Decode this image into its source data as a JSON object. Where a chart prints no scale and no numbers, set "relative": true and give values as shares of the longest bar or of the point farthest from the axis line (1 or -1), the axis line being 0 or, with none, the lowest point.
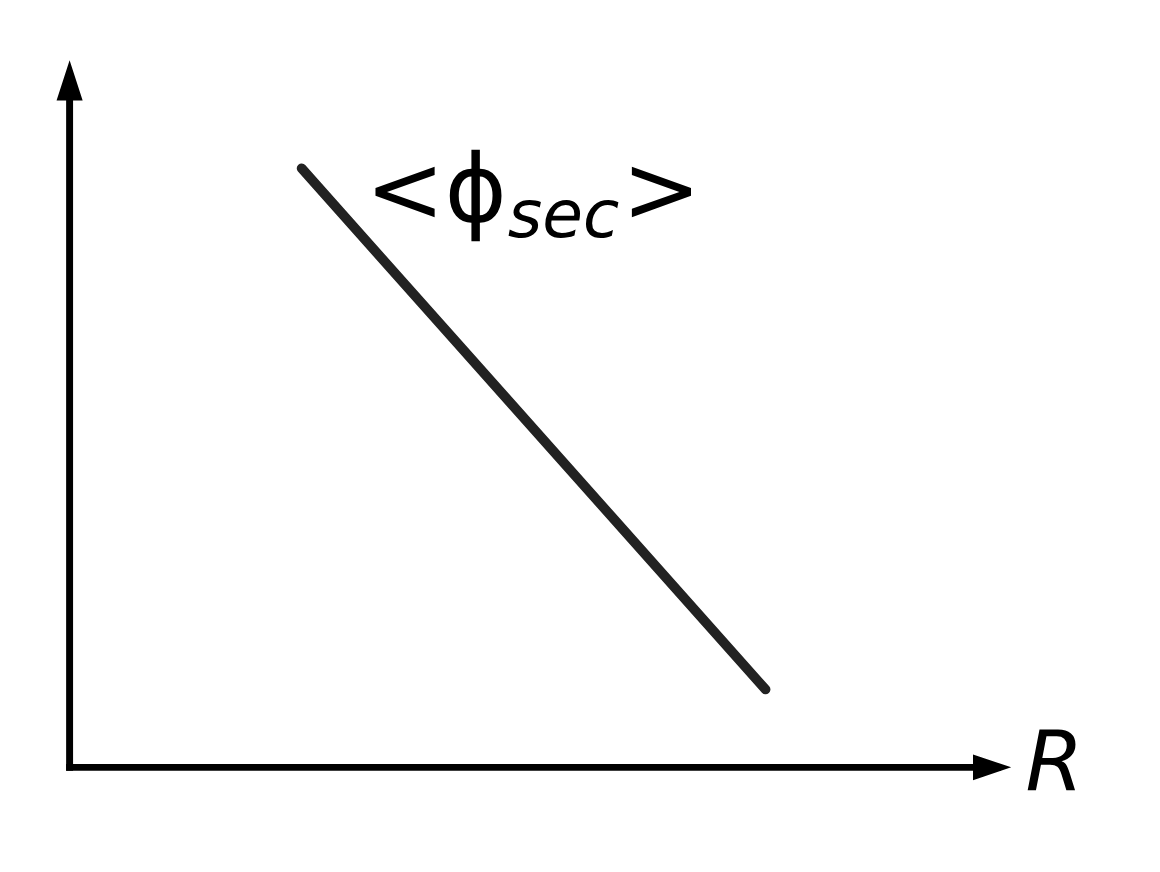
{
  "chart_data": {
    "type": "line",
    "relative": true,
    "xlabel": "R",
    "categories": [
      null,
      null,
      null,
      null,
      null,
      null
    ],
    "series": [
      {
        "color": "#222222",
        "values": [
          null,
          1,
          0.71,
          0.42,
          0.13,
          null
        ]
      }
    ],
    "annotations": [
      "<ϕ$_{sec}$>"
    ],
    "grid": false,
    "legend": false,
    "marker": "none",
    "line_style": "solid"
  }
}
